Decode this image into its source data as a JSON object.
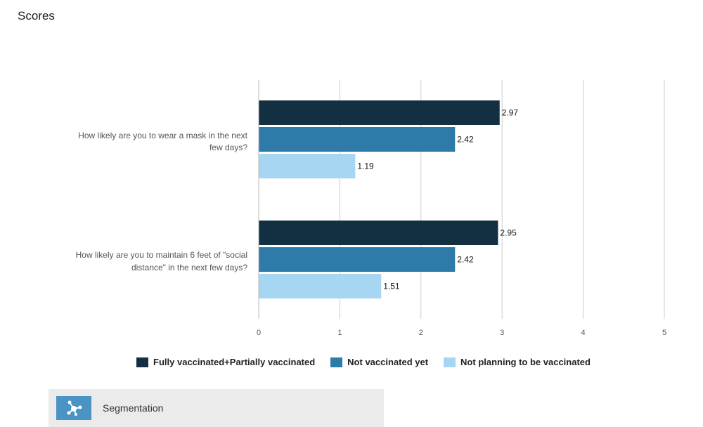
{
  "page": {
    "title": "Scores"
  },
  "colors": {
    "series0": "#132f42",
    "series1": "#2e7aa8",
    "series2": "#a6d6f2",
    "grid": "#cccccc"
  },
  "chart_data": {
    "type": "bar",
    "orientation": "horizontal",
    "title": "Scores",
    "categories": [
      [
        "How likely are you to wear a mask in the next",
        "few days?"
      ],
      [
        "How likely are you to maintain 6 feet of \"social",
        "distance\" in the next few days?"
      ]
    ],
    "series": [
      {
        "name": "Fully vaccinated+Partially vaccinated",
        "values": [
          2.97,
          2.95
        ],
        "labels": [
          "2.97",
          "2.95"
        ]
      },
      {
        "name": "Not vaccinated yet",
        "values": [
          2.42,
          2.42
        ],
        "labels": [
          "2.42",
          "2.42"
        ]
      },
      {
        "name": "Not planning to be vaccinated",
        "values": [
          1.19,
          1.51
        ],
        "labels": [
          "1.19",
          "1.51"
        ]
      }
    ],
    "xlim": [
      0,
      5
    ],
    "xticks": [
      "0",
      "1",
      "2",
      "3",
      "4",
      "5"
    ],
    "grid": true,
    "legend": "bottom"
  },
  "segmentation": {
    "label": "Segmentation",
    "icon": "network-icon"
  }
}
